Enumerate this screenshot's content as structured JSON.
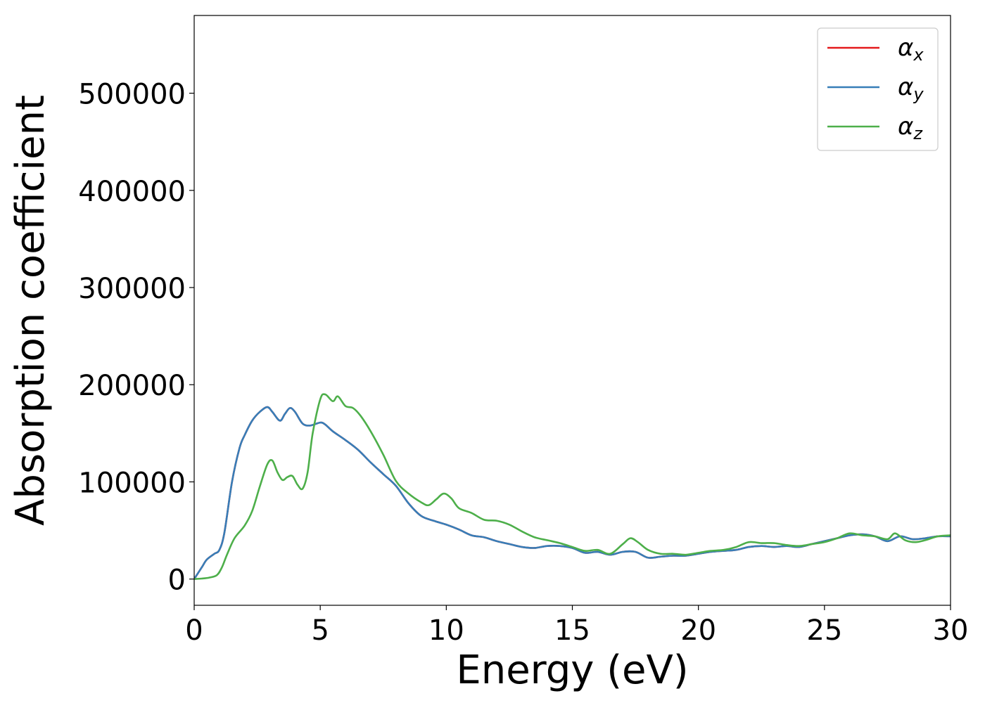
{
  "chart_data": {
    "type": "line",
    "title": "",
    "xlabel": "Energy (eV)",
    "ylabel": "Absorption coefficient",
    "xlim": [
      0,
      30
    ],
    "ylim": [
      -27000,
      580000
    ],
    "xticks": [
      0,
      5,
      10,
      15,
      20,
      25,
      30
    ],
    "yticks": [
      0,
      100000,
      200000,
      300000,
      400000,
      500000
    ],
    "xtick_labels": [
      "0",
      "5",
      "10",
      "15",
      "20",
      "25",
      "30"
    ],
    "ytick_labels": [
      "0",
      "100000",
      "200000",
      "300000",
      "400000",
      "500000"
    ],
    "grid": false,
    "legend_position": "top-right",
    "legend": [
      {
        "symbol": "α",
        "sub": "x",
        "color": "#e41a1c"
      },
      {
        "symbol": "α",
        "sub": "y",
        "color": "#377eb8"
      },
      {
        "symbol": "α",
        "sub": "z",
        "color": "#4daf4a"
      }
    ],
    "series": [
      {
        "name": "αx",
        "color": "#e41a1c",
        "x": [
          0,
          0.3,
          0.5,
          0.8,
          1.0,
          1.2,
          1.5,
          1.8,
          2.0,
          2.3,
          2.6,
          2.9,
          3.1,
          3.4,
          3.6,
          3.8,
          4.0,
          4.3,
          4.6,
          5.0,
          5.2,
          5.5,
          6.0,
          6.5,
          7.0,
          7.5,
          8.0,
          8.5,
          9.0,
          9.5,
          10.0,
          10.5,
          11.0,
          11.5,
          12.0,
          12.5,
          13.0,
          13.5,
          14.0,
          14.5,
          15.0,
          15.5,
          16.0,
          16.5,
          17.0,
          17.5,
          18.0,
          18.5,
          19.0,
          19.5,
          20.0,
          20.5,
          21.0,
          21.5,
          22.0,
          22.5,
          23.0,
          23.5,
          24.0,
          24.5,
          25.0,
          25.5,
          26.0,
          26.5,
          27.0,
          27.5,
          28.0,
          28.5,
          29.0,
          29.5,
          30.0
        ],
        "y": [
          0,
          12000,
          20000,
          26000,
          30000,
          48000,
          100000,
          135000,
          148000,
          163000,
          172000,
          177000,
          172000,
          163000,
          170000,
          176000,
          172000,
          160000,
          158000,
          161000,
          159000,
          152000,
          143000,
          133000,
          120000,
          108000,
          96000,
          78000,
          65000,
          60000,
          56000,
          51000,
          45000,
          43000,
          39000,
          36000,
          33000,
          32000,
          34000,
          34000,
          32000,
          27000,
          28000,
          25000,
          28000,
          28000,
          22000,
          23000,
          24000,
          24000,
          26000,
          28000,
          29000,
          30000,
          33000,
          34000,
          33000,
          34000,
          33000,
          36000,
          39000,
          42000,
          45000,
          46000,
          44000,
          39000,
          44000,
          41000,
          42000,
          44000,
          44000
        ]
      },
      {
        "name": "αy",
        "color": "#377eb8",
        "x": [
          0,
          0.3,
          0.5,
          0.8,
          1.0,
          1.2,
          1.5,
          1.8,
          2.0,
          2.3,
          2.6,
          2.9,
          3.1,
          3.4,
          3.6,
          3.8,
          4.0,
          4.3,
          4.6,
          5.0,
          5.2,
          5.5,
          6.0,
          6.5,
          7.0,
          7.5,
          8.0,
          8.5,
          9.0,
          9.5,
          10.0,
          10.5,
          11.0,
          11.5,
          12.0,
          12.5,
          13.0,
          13.5,
          14.0,
          14.5,
          15.0,
          15.5,
          16.0,
          16.5,
          17.0,
          17.5,
          18.0,
          18.5,
          19.0,
          19.5,
          20.0,
          20.5,
          21.0,
          21.5,
          22.0,
          22.5,
          23.0,
          23.5,
          24.0,
          24.5,
          25.0,
          25.5,
          26.0,
          26.5,
          27.0,
          27.5,
          28.0,
          28.5,
          29.0,
          29.5,
          30.0
        ],
        "y": [
          0,
          12000,
          20000,
          26000,
          30000,
          48000,
          100000,
          135000,
          148000,
          163000,
          172000,
          177000,
          172000,
          163000,
          170000,
          176000,
          172000,
          160000,
          158000,
          161000,
          159000,
          152000,
          143000,
          133000,
          120000,
          108000,
          96000,
          78000,
          65000,
          60000,
          56000,
          51000,
          45000,
          43000,
          39000,
          36000,
          33000,
          32000,
          34000,
          34000,
          32000,
          27000,
          28000,
          25000,
          28000,
          28000,
          22000,
          23000,
          24000,
          24000,
          26000,
          28000,
          29000,
          30000,
          33000,
          34000,
          33000,
          34000,
          33000,
          36000,
          39000,
          42000,
          45000,
          46000,
          44000,
          39000,
          44000,
          41000,
          42000,
          44000,
          44000
        ]
      },
      {
        "name": "αz",
        "color": "#4daf4a",
        "x": [
          0,
          0.3,
          0.6,
          0.9,
          1.1,
          1.3,
          1.6,
          2.0,
          2.3,
          2.6,
          2.9,
          3.1,
          3.3,
          3.5,
          3.7,
          3.9,
          4.1,
          4.3,
          4.5,
          4.7,
          5.0,
          5.2,
          5.5,
          5.7,
          6.0,
          6.3,
          6.6,
          7.0,
          7.5,
          8.0,
          8.5,
          9.0,
          9.3,
          9.6,
          9.9,
          10.2,
          10.5,
          11.0,
          11.5,
          12.0,
          12.5,
          13.0,
          13.5,
          14.0,
          14.5,
          15.0,
          15.5,
          16.0,
          16.5,
          17.0,
          17.3,
          17.6,
          18.0,
          18.5,
          19.0,
          19.5,
          20.0,
          20.5,
          21.0,
          21.5,
          22.0,
          22.5,
          23.0,
          23.5,
          24.0,
          24.5,
          25.0,
          25.5,
          26.0,
          26.5,
          27.0,
          27.5,
          27.8,
          28.2,
          28.6,
          29.0,
          29.5,
          30.0
        ],
        "y": [
          0,
          500,
          1500,
          4000,
          12000,
          25000,
          42000,
          55000,
          70000,
          95000,
          118000,
          122000,
          110000,
          102000,
          105000,
          106000,
          97000,
          93000,
          110000,
          150000,
          185000,
          190000,
          183000,
          188000,
          178000,
          176000,
          168000,
          152000,
          128000,
          101000,
          88000,
          79000,
          76000,
          82000,
          88000,
          83000,
          73000,
          68000,
          61000,
          60000,
          56000,
          49000,
          43000,
          40000,
          37000,
          33000,
          29000,
          30000,
          26000,
          36000,
          42000,
          38000,
          30000,
          26000,
          26000,
          25000,
          27000,
          29000,
          30000,
          33000,
          38000,
          37000,
          37000,
          35000,
          34000,
          36000,
          38000,
          42000,
          47000,
          45000,
          44000,
          41000,
          47000,
          40000,
          38000,
          40000,
          44000,
          45000
        ]
      }
    ]
  }
}
